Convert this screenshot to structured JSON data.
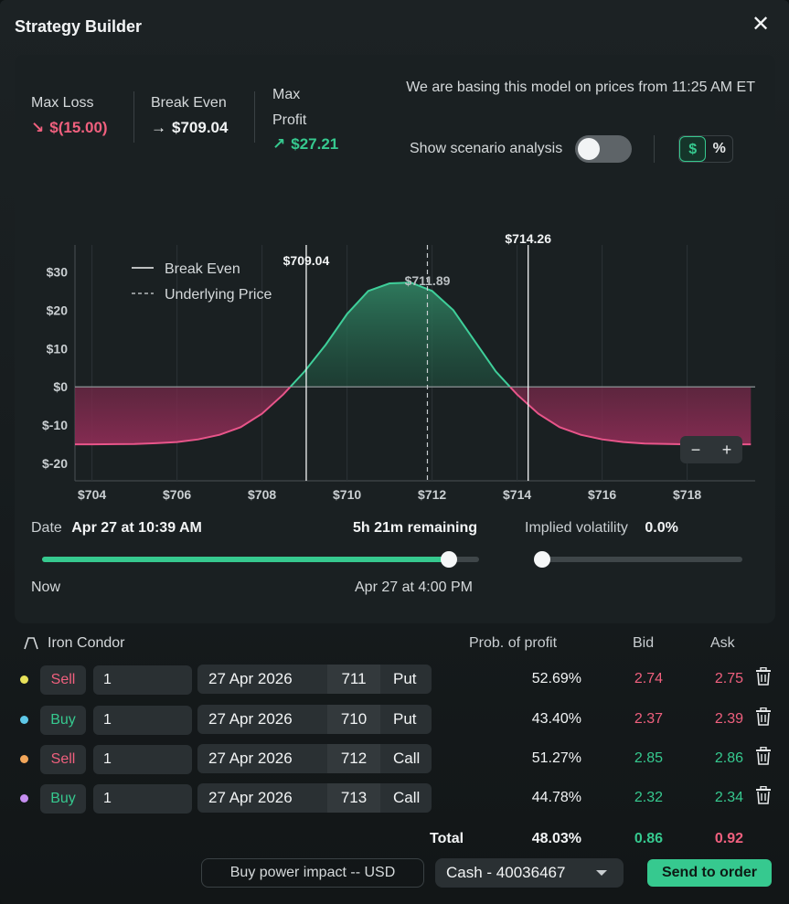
{
  "window": {
    "title": "Strategy Builder"
  },
  "stats": {
    "max_loss_label": "Max Loss",
    "max_loss_value": "$(15.00)",
    "break_even_label": "Break Even",
    "break_even_value": "$709.04",
    "max_profit_label_1": "Max",
    "max_profit_label_2": "Profit",
    "max_profit_value": "$27.21"
  },
  "basing_text": "We are basing this model on prices from 11:25 AM ET",
  "scenario": {
    "label": "Show scenario analysis",
    "enabled": false
  },
  "units": {
    "dollar": "$",
    "percent": "%",
    "active": "dollar"
  },
  "chart_data": {
    "type": "area",
    "x": [
      703.6,
      704,
      705,
      705.5,
      706,
      706.5,
      707,
      707.5,
      708,
      708.5,
      709,
      709.5,
      710,
      710.5,
      711,
      711.5,
      712,
      712.5,
      713,
      713.5,
      714,
      714.5,
      715,
      715.5,
      716,
      716.5,
      717,
      718,
      719.5
    ],
    "y": [
      -15,
      -15,
      -14.9,
      -14.7,
      -14.4,
      -13.7,
      -12.5,
      -10.5,
      -7,
      -2,
      4,
      11,
      19,
      25,
      27,
      27.21,
      25,
      20,
      12,
      4,
      -2,
      -7,
      -10.5,
      -12.5,
      -13.7,
      -14.4,
      -14.8,
      -15,
      -15
    ],
    "x_ticks": [
      "$704",
      "$706",
      "$708",
      "$710",
      "$712",
      "$714",
      "$716",
      "$718"
    ],
    "x_tick_values": [
      704,
      706,
      708,
      710,
      712,
      714,
      716,
      718
    ],
    "y_ticks": [
      "$30",
      "$20",
      "$10",
      "$0",
      "$-10",
      "$-20"
    ],
    "y_tick_values": [
      30,
      20,
      10,
      0,
      -10,
      -20
    ],
    "xlim": [
      703.6,
      719.6
    ],
    "ylim": [
      -24.5,
      37
    ],
    "break_even_lines": [
      709.04,
      714.26
    ],
    "break_even_labels": [
      "$709.04",
      "$714.26"
    ],
    "underlying_price": 711.89,
    "underlying_label": "$711.89",
    "legend": [
      "Break Even",
      "Underlying Price"
    ],
    "legend_position": "top-left",
    "grid": true,
    "colors": {
      "profit": "#3fcf9a",
      "loss": "#e8558a"
    }
  },
  "zoom": {
    "minus": "−",
    "plus": "+"
  },
  "time": {
    "date_label": "Date",
    "date_value": "Apr 27 at 10:39 AM",
    "remaining": "5h 21m remaining",
    "progress": 0.93,
    "now_label": "Now",
    "end_label": "Apr 27 at 4:00 PM"
  },
  "volatility": {
    "label": "Implied volatility",
    "value": "0.0%",
    "position": 0.0
  },
  "strategy": {
    "name": "Iron Condor",
    "columns": {
      "prob": "Prob. of profit",
      "bid": "Bid",
      "ask": "Ask"
    },
    "legs": [
      {
        "side": "Sell",
        "qty": "1",
        "date": "27 Apr 2026",
        "strike": "711",
        "type": "Put",
        "prob": "52.69%",
        "bid": "2.74",
        "ask": "2.75",
        "dot": "#e8e25a"
      },
      {
        "side": "Buy",
        "qty": "1",
        "date": "27 Apr 2026",
        "strike": "710",
        "type": "Put",
        "prob": "43.40%",
        "bid": "2.37",
        "ask": "2.39",
        "dot": "#5ec8e8"
      },
      {
        "side": "Sell",
        "qty": "1",
        "date": "27 Apr 2026",
        "strike": "712",
        "type": "Call",
        "prob": "51.27%",
        "bid": "2.85",
        "ask": "2.86",
        "dot": "#f2a65a"
      },
      {
        "side": "Buy",
        "qty": "1",
        "date": "27 Apr 2026",
        "strike": "713",
        "type": "Call",
        "prob": "44.78%",
        "bid": "2.32",
        "ask": "2.34",
        "dot": "#c58ef0"
      }
    ],
    "total": {
      "label": "Total",
      "prob": "48.03%",
      "bid": "0.86",
      "ask": "0.92"
    }
  },
  "footer": {
    "buy_power": "Buy power impact -- USD",
    "account": "Cash - 40036467",
    "send": "Send to order"
  }
}
